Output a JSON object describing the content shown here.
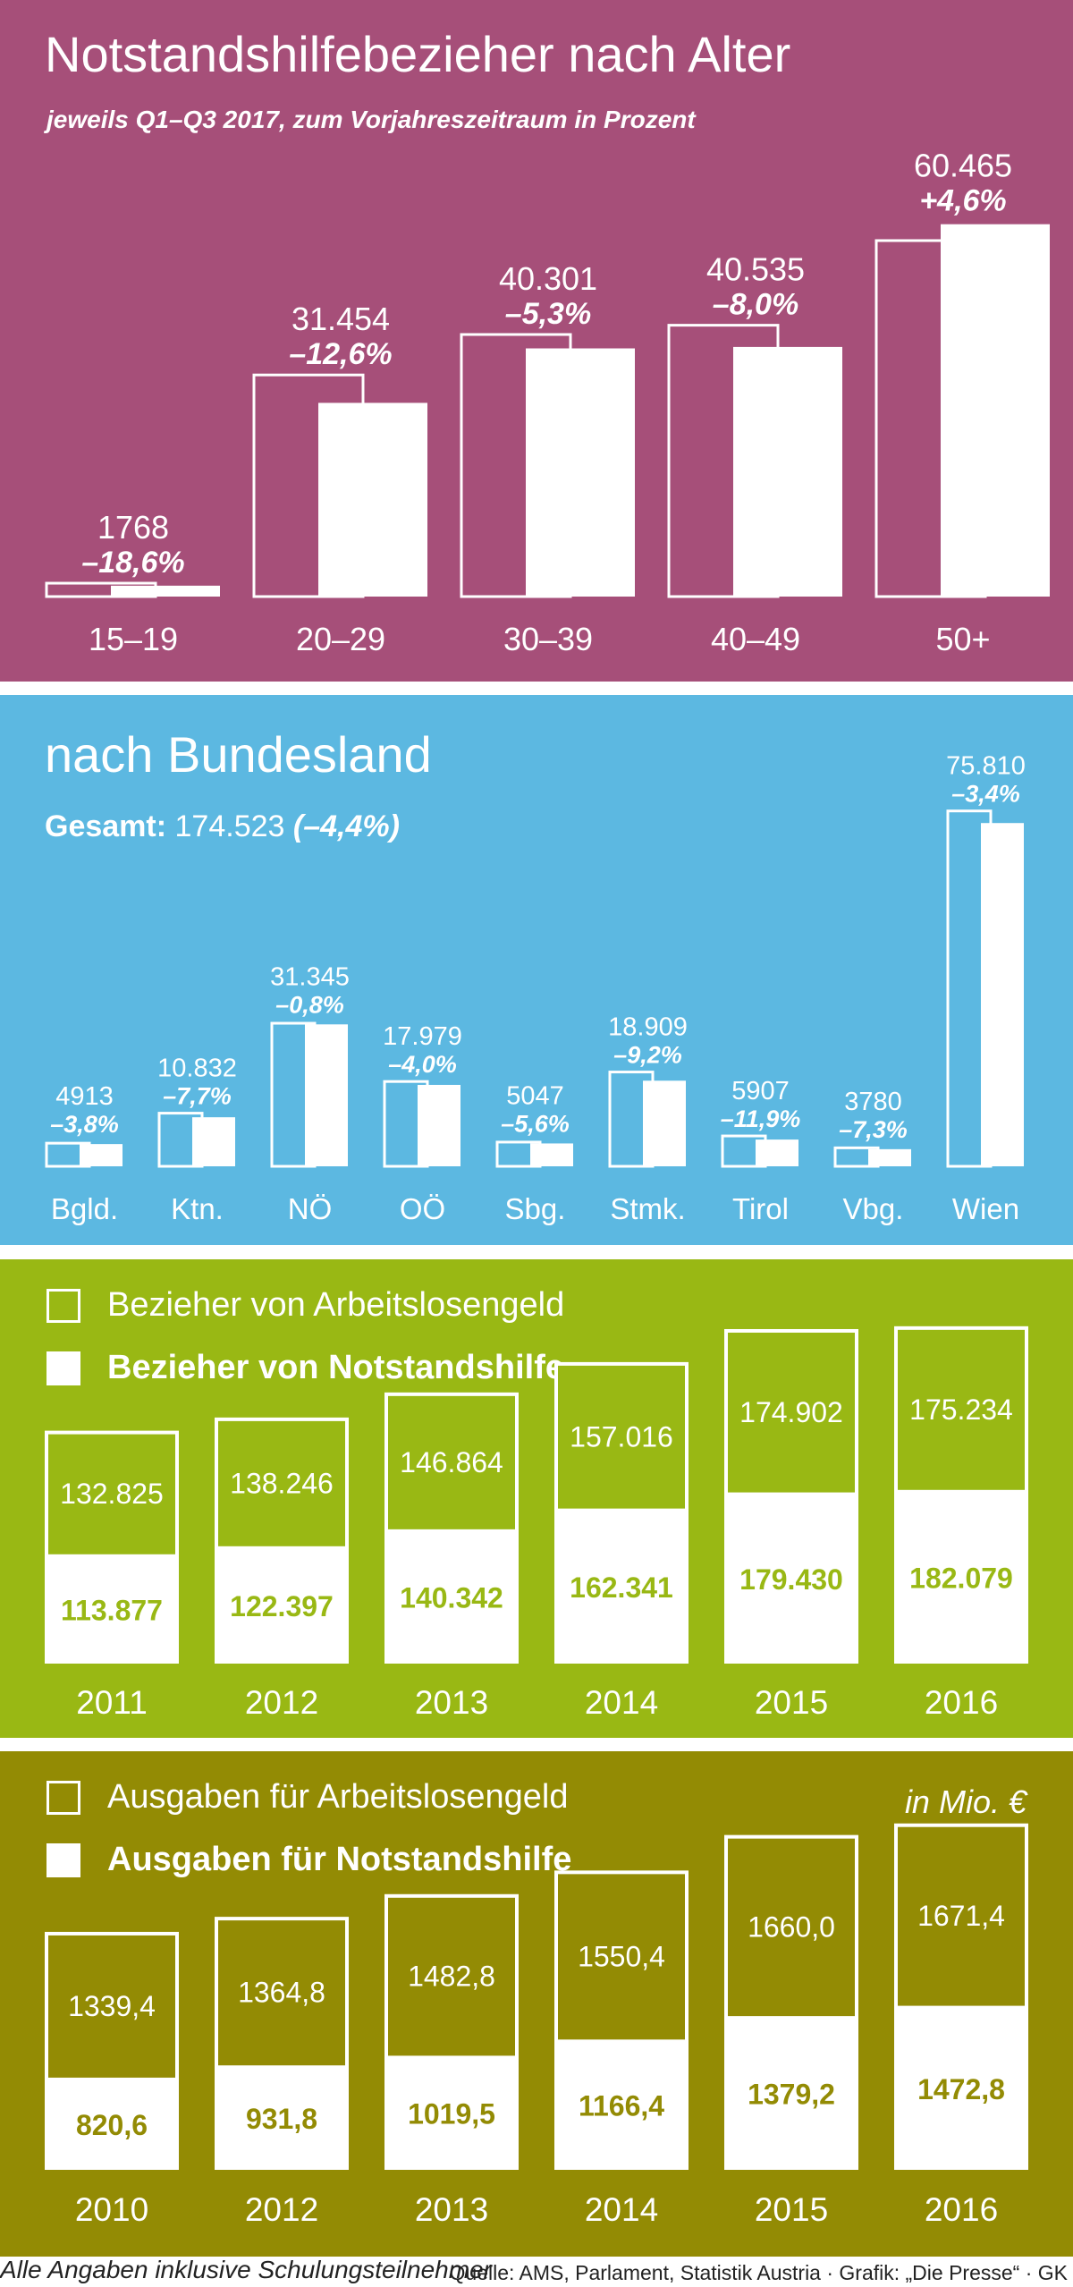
{
  "colors": {
    "age_bg": "#a64f79",
    "state_bg": "#5cb8e1",
    "recipients_bg": "#99b814",
    "spending_bg": "#938b04",
    "bar": "#ffffff"
  },
  "age": {
    "title": "Notstandshilfebezieher nach Alter",
    "subtitle": "jeweils Q1–Q3 2017, zum Vorjahreszeitraum in Prozent"
  },
  "state": {
    "title": "nach Bundesland",
    "total_label": "Gesamt:",
    "total_value": "174.523",
    "total_change": "(–4,4%)"
  },
  "recipients": {
    "legend_outline": "Bezieher von Arbeitslosengeld",
    "legend_filled": "Bezieher von Notstandshilfe"
  },
  "spending": {
    "legend_outline": "Ausgaben für Arbeitslosengeld",
    "legend_filled": "Ausgaben für Notstandshilfe",
    "unit": "in Mio. €"
  },
  "footer": {
    "note": "Alle Angaben inklusive Schulungsteilnehmer",
    "source": "Quelle: AMS, Parlament, Statistik Austria · Grafik: „Die Presse“ · GK"
  },
  "chart_data": [
    {
      "id": "age",
      "type": "bar",
      "title": "Notstandshilfebezieher nach Alter",
      "subtitle": "jeweils Q1–Q3 2017, zum Vorjahreszeitraum in Prozent",
      "categories": [
        "15–19",
        "20–29",
        "30–39",
        "40–49",
        "50+"
      ],
      "series": [
        {
          "name": "Vorjahreszeitraum (Q1–Q3 2016)",
          "style": "outline",
          "values": [
            2172,
            35986,
            42556,
            44060,
            57806
          ]
        },
        {
          "name": "Q1–Q3 2017",
          "style": "filled",
          "values": [
            1768,
            31454,
            40301,
            40535,
            60465
          ]
        }
      ],
      "value_labels": [
        "1768",
        "31.454",
        "40.301",
        "40.535",
        "60.465"
      ],
      "change_labels": [
        "–18,6%",
        "–12,6%",
        "–5,3%",
        "–8,0%",
        "+4,6%"
      ],
      "ylim": [
        0,
        61000
      ]
    },
    {
      "id": "state",
      "type": "bar",
      "title": "nach Bundesland",
      "categories": [
        "Bgld.",
        "Ktn.",
        "NÖ",
        "OÖ",
        "Sbg.",
        "Stmk.",
        "Tirol",
        "Vbg.",
        "Wien"
      ],
      "series": [
        {
          "name": "Vorjahreszeitraum",
          "style": "outline",
          "values": [
            5107,
            11735,
            31598,
            18728,
            5346,
            20826,
            6705,
            4078,
            78478
          ]
        },
        {
          "name": "Q1–Q3 2017",
          "style": "filled",
          "values": [
            4913,
            10832,
            31345,
            17979,
            5047,
            18909,
            5907,
            3780,
            75810
          ]
        }
      ],
      "value_labels": [
        "4913",
        "10.832",
        "31.345",
        "17.979",
        "5047",
        "18.909",
        "5907",
        "3780",
        "75.810"
      ],
      "change_labels": [
        "–3,8%",
        "–7,7%",
        "–0,8%",
        "–4,0%",
        "–5,6%",
        "–9,2%",
        "–11,9%",
        "–7,3%",
        "–3,4%"
      ],
      "ylim": [
        0,
        80000
      ]
    },
    {
      "id": "recipients",
      "type": "bar",
      "stacked": true,
      "categories": [
        "2011",
        "2012",
        "2013",
        "2014",
        "2015",
        "2016"
      ],
      "series": [
        {
          "name": "Bezieher von Notstandshilfe",
          "style": "filled",
          "values": [
            113877,
            122397,
            140342,
            162341,
            179430,
            182079
          ],
          "labels": [
            "113.877",
            "122.397",
            "140.342",
            "162.341",
            "179.430",
            "182.079"
          ]
        },
        {
          "name": "Bezieher von Arbeitslosengeld",
          "style": "outline",
          "values": [
            132825,
            138246,
            146864,
            157016,
            174902,
            175234
          ],
          "labels": [
            "132.825",
            "138.246",
            "146.864",
            "157.016",
            "174.902",
            "175.234"
          ]
        }
      ],
      "ylim": [
        0,
        360000
      ]
    },
    {
      "id": "spending",
      "type": "bar",
      "stacked": true,
      "unit": "in Mio. €",
      "categories": [
        "2010",
        "2012",
        "2013",
        "2014",
        "2015",
        "2016"
      ],
      "series": [
        {
          "name": "Ausgaben für Notstandshilfe",
          "style": "filled",
          "values": [
            820.6,
            931.8,
            1019.5,
            1166.4,
            1379.2,
            1472.8
          ],
          "labels": [
            "820,6",
            "931,8",
            "1019,5",
            "1166,4",
            "1379,2",
            "1472,8"
          ]
        },
        {
          "name": "Ausgaben für Arbeitslosengeld",
          "style": "outline",
          "values": [
            1339.4,
            1364.8,
            1482.8,
            1550.4,
            1660.0,
            1671.4
          ],
          "labels": [
            "1339,4",
            "1364,8",
            "1482,8",
            "1550,4",
            "1660,0",
            "1671,4"
          ]
        }
      ],
      "ylim": [
        0,
        3150
      ]
    }
  ]
}
